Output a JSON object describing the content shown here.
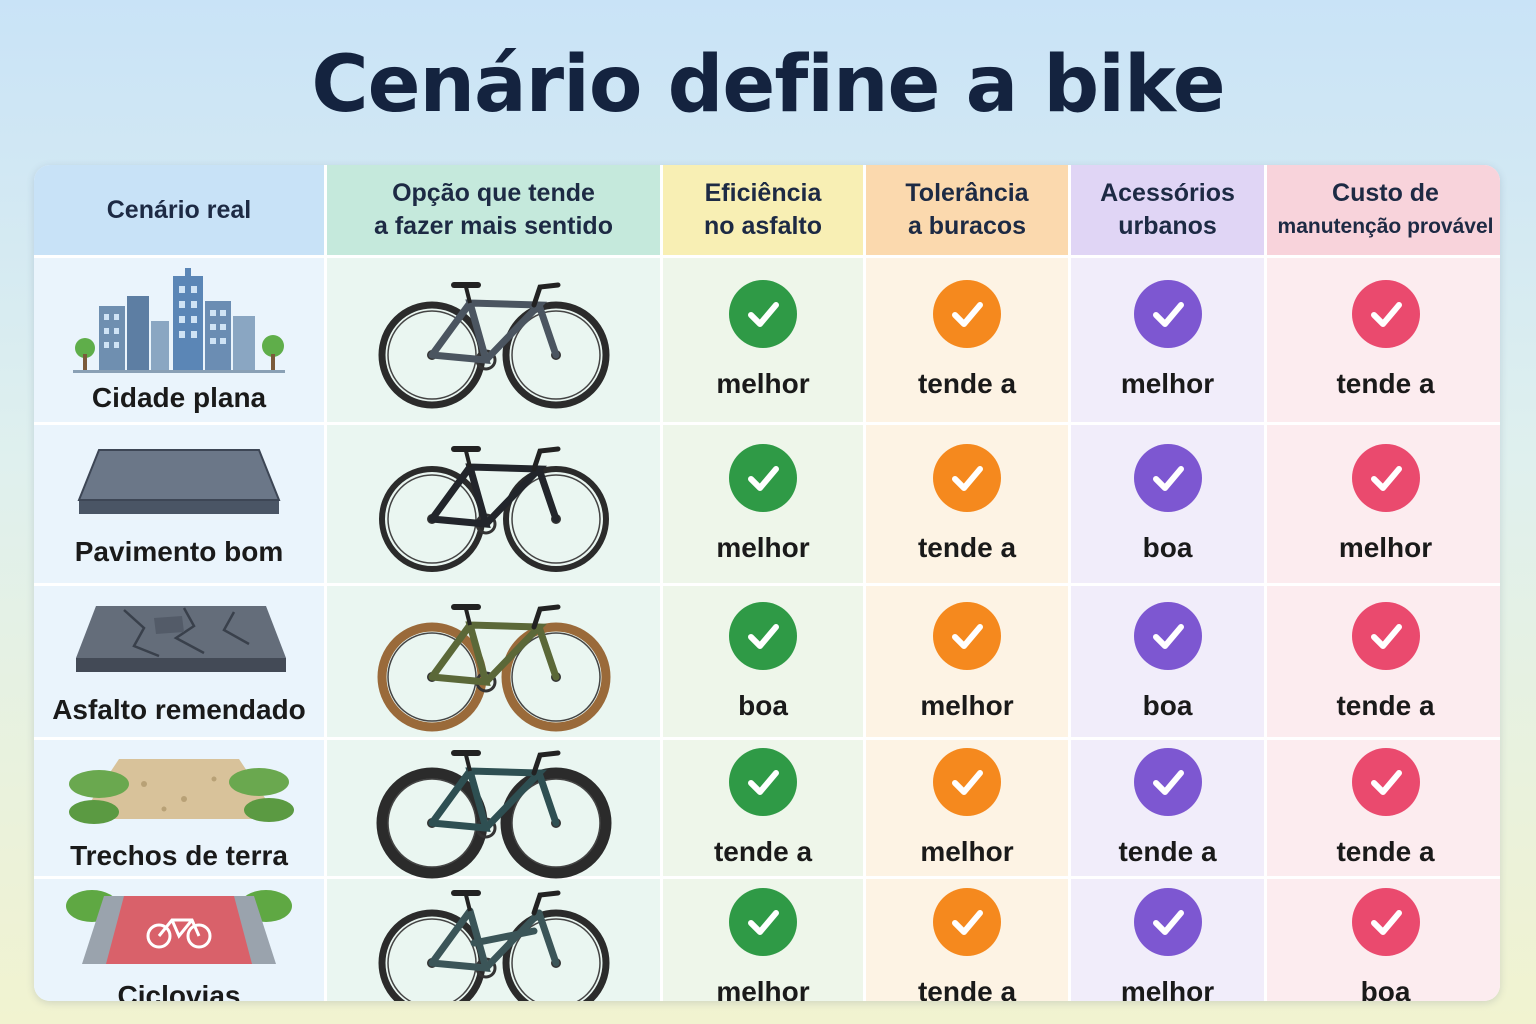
{
  "title": "Cenário define a bike",
  "colors": {
    "efficiency": "#2f9a46",
    "tolerance": "#f5891e",
    "accessories": "#7d57d1",
    "cost": "#ea4a6e"
  },
  "headers": {
    "scenario": "Cenário real",
    "option_line1": "Opção que tende",
    "option_line2": "a fazer mais sentido",
    "efficiency_line1": "Eficiência",
    "efficiency_line2": "no asfalto",
    "tolerance_line1": "Tolerância",
    "tolerance_line2": "a buracos",
    "accessories_line1": "Acessórios",
    "accessories_line2": "urbanos",
    "cost_line1": "Custo de",
    "cost_line2": "manutenção provável"
  },
  "rows": [
    {
      "scenario": "Cidade plana",
      "scenario_icon": "city-skyline-icon",
      "bike_icon": "hybrid-bike-icon",
      "efficiency": "melhor",
      "tolerance": "tende a",
      "accessories": "melhor",
      "cost": "tende a"
    },
    {
      "scenario": "Pavimento bom",
      "scenario_icon": "smooth-pavement-icon",
      "bike_icon": "road-bike-icon",
      "efficiency": "melhor",
      "tolerance": "tende a",
      "accessories": "boa",
      "cost": "melhor"
    },
    {
      "scenario": "Asfalto remendado",
      "scenario_icon": "patched-asphalt-icon",
      "bike_icon": "gravel-bike-icon",
      "efficiency": "boa",
      "tolerance": "melhor",
      "accessories": "boa",
      "cost": "tende a"
    },
    {
      "scenario": "Trechos de terra",
      "scenario_icon": "dirt-trail-icon",
      "bike_icon": "mountain-bike-icon",
      "efficiency": "tende a",
      "tolerance": "melhor",
      "accessories": "tende a",
      "cost": "tende a"
    },
    {
      "scenario": "Ciclovias",
      "scenario_icon": "bike-lane-icon",
      "bike_icon": "city-bike-icon",
      "efficiency": "melhor",
      "tolerance": "tende a",
      "accessories": "melhor",
      "cost": "boa"
    }
  ]
}
